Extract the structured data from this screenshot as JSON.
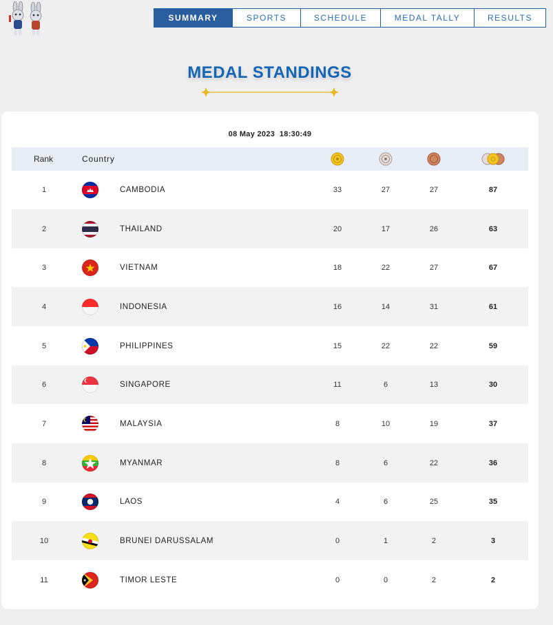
{
  "nav": {
    "tabs": [
      {
        "label": "SUMMARY",
        "active": true
      },
      {
        "label": "SPORTS",
        "active": false
      },
      {
        "label": "SCHEDULE",
        "active": false
      },
      {
        "label": "MEDAL TALLY",
        "active": false
      },
      {
        "label": "RESULTS",
        "active": false
      }
    ]
  },
  "page": {
    "title": "MEDAL STANDINGS"
  },
  "standings": {
    "timestamp": "08 May 2023  18:30:49",
    "headers": {
      "rank": "Rank",
      "country": "Country"
    },
    "medal_icons": [
      "gold-medal-icon",
      "silver-medal-icon",
      "bronze-medal-icon",
      "total-medals-icon"
    ],
    "colors": {
      "accent": "#1565b5",
      "nav_active": "#2a5e9e",
      "header_bg": "#e8eef7",
      "gold": "#e8b923"
    },
    "rows": [
      {
        "rank": "1",
        "country": "CAMBODIA",
        "flag": "cambodia-flag-icon",
        "gold": "33",
        "silver": "27",
        "bronze": "27",
        "total": "87"
      },
      {
        "rank": "2",
        "country": "THAILAND",
        "flag": "thailand-flag-icon",
        "gold": "20",
        "silver": "17",
        "bronze": "26",
        "total": "63"
      },
      {
        "rank": "3",
        "country": "VIETNAM",
        "flag": "vietnam-flag-icon",
        "gold": "18",
        "silver": "22",
        "bronze": "27",
        "total": "67"
      },
      {
        "rank": "4",
        "country": "INDONESIA",
        "flag": "indonesia-flag-icon",
        "gold": "16",
        "silver": "14",
        "bronze": "31",
        "total": "61"
      },
      {
        "rank": "5",
        "country": "PHILIPPINES",
        "flag": "philippines-flag-icon",
        "gold": "15",
        "silver": "22",
        "bronze": "22",
        "total": "59"
      },
      {
        "rank": "6",
        "country": "SINGAPORE",
        "flag": "singapore-flag-icon",
        "gold": "11",
        "silver": "6",
        "bronze": "13",
        "total": "30"
      },
      {
        "rank": "7",
        "country": "MALAYSIA",
        "flag": "malaysia-flag-icon",
        "gold": "8",
        "silver": "10",
        "bronze": "19",
        "total": "37"
      },
      {
        "rank": "8",
        "country": "MYANMAR",
        "flag": "myanmar-flag-icon",
        "gold": "8",
        "silver": "6",
        "bronze": "22",
        "total": "36"
      },
      {
        "rank": "9",
        "country": "LAOS",
        "flag": "laos-flag-icon",
        "gold": "4",
        "silver": "6",
        "bronze": "25",
        "total": "35"
      },
      {
        "rank": "10",
        "country": "BRUNEI DARUSSALAM",
        "flag": "brunei-flag-icon",
        "gold": "0",
        "silver": "1",
        "bronze": "2",
        "total": "3"
      },
      {
        "rank": "11",
        "country": "TIMOR LESTE",
        "flag": "timor-leste-flag-icon",
        "gold": "0",
        "silver": "0",
        "bronze": "2",
        "total": "2"
      }
    ]
  }
}
